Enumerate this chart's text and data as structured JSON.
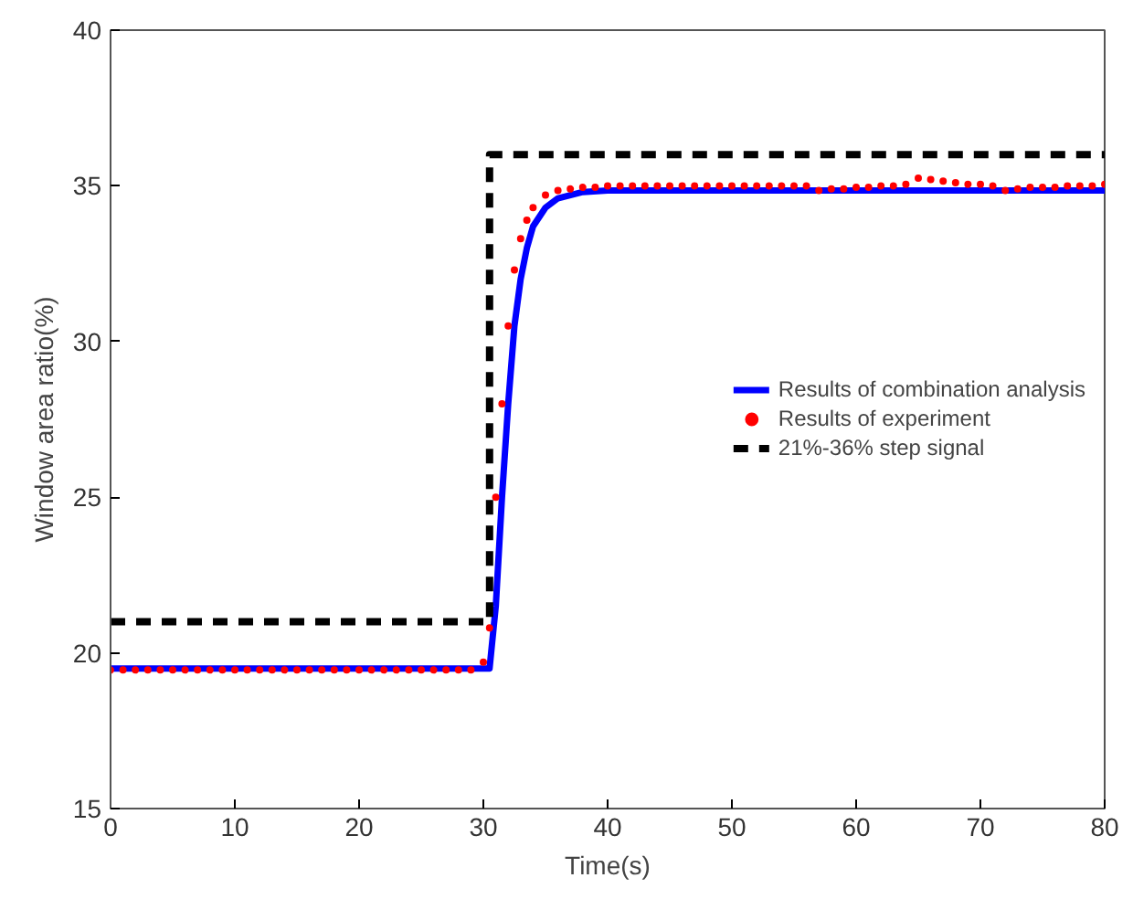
{
  "chart_data": {
    "type": "line",
    "xlabel": "Time(s)",
    "ylabel": "Window area ratio(%)",
    "xlim": [
      0,
      80
    ],
    "ylim": [
      15,
      40
    ],
    "xticks": [
      0,
      10,
      20,
      30,
      40,
      50,
      60,
      70,
      80
    ],
    "yticks": [
      15,
      20,
      25,
      30,
      35,
      40
    ],
    "grid": false,
    "legend": "right",
    "series": [
      {
        "name": "Results of combination analysis",
        "line_style": "solid",
        "color": "#0000ff",
        "x": [
          0,
          30.5,
          31,
          31.5,
          32,
          32.5,
          33,
          33.5,
          34,
          35,
          36,
          38,
          40,
          80
        ],
        "values": [
          19.5,
          19.5,
          21.5,
          25,
          28,
          30.5,
          32,
          33,
          33.7,
          34.3,
          34.6,
          34.8,
          34.85,
          34.85
        ]
      },
      {
        "name": "Results of experiment",
        "type": "scatter",
        "marker": "circle",
        "color": "#ff0000",
        "x": [
          0,
          1,
          2,
          3,
          4,
          5,
          6,
          7,
          8,
          9,
          10,
          11,
          12,
          13,
          14,
          15,
          16,
          17,
          18,
          19,
          20,
          21,
          22,
          23,
          24,
          25,
          26,
          27,
          28,
          29,
          30,
          30.5,
          31,
          31.5,
          32,
          32.5,
          33,
          33.5,
          34,
          35,
          36,
          37,
          38,
          39,
          40,
          41,
          42,
          43,
          44,
          45,
          46,
          47,
          48,
          49,
          50,
          51,
          52,
          53,
          54,
          55,
          56,
          57,
          58,
          59,
          60,
          61,
          62,
          63,
          64,
          65,
          66,
          67,
          68,
          69,
          70,
          71,
          72,
          73,
          74,
          75,
          76,
          77,
          78,
          79,
          80
        ],
        "values": [
          19.45,
          19.45,
          19.45,
          19.45,
          19.45,
          19.45,
          19.45,
          19.45,
          19.45,
          19.45,
          19.45,
          19.45,
          19.45,
          19.45,
          19.45,
          19.45,
          19.45,
          19.45,
          19.45,
          19.45,
          19.45,
          19.45,
          19.45,
          19.45,
          19.45,
          19.45,
          19.45,
          19.45,
          19.45,
          19.45,
          19.7,
          20.8,
          25,
          28,
          30.5,
          32.3,
          33.3,
          33.9,
          34.3,
          34.7,
          34.85,
          34.9,
          34.95,
          34.95,
          35,
          35,
          35,
          35,
          35,
          35,
          35,
          35,
          35,
          35,
          35,
          35,
          35,
          35,
          35,
          35,
          35,
          34.85,
          34.9,
          34.9,
          34.95,
          34.95,
          35,
          35,
          35.05,
          35.25,
          35.2,
          35.15,
          35.1,
          35.05,
          35.05,
          35,
          34.85,
          34.9,
          34.95,
          34.95,
          34.95,
          35,
          35,
          35,
          35.05
        ]
      },
      {
        "name": "21%-36% step signal",
        "type": "line",
        "line_style": "dashed",
        "color": "#000000",
        "x": [
          0,
          30.5,
          30.5,
          80
        ],
        "values": [
          21,
          21,
          36,
          36
        ]
      }
    ]
  }
}
